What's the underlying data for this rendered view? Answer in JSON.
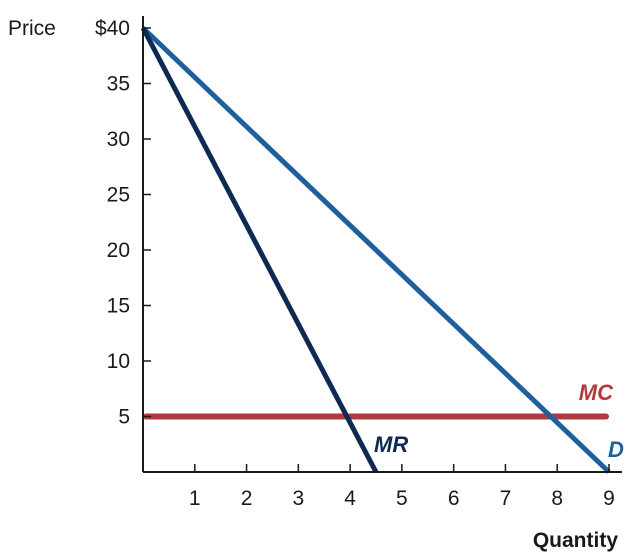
{
  "chart_data": {
    "type": "line",
    "xlabel": "Quantity",
    "ylabel": "Price",
    "xlim": [
      0,
      9
    ],
    "ylim": [
      0,
      40
    ],
    "x_ticks": [
      "1",
      "2",
      "3",
      "4",
      "5",
      "6",
      "7",
      "8",
      "9"
    ],
    "y_ticks": [
      "5",
      "10",
      "15",
      "20",
      "25",
      "30",
      "35",
      "$40"
    ],
    "grid": false,
    "series": [
      {
        "name": "D",
        "x": [
          0,
          9
        ],
        "y": [
          40,
          0
        ],
        "color": "#1f5f9e"
      },
      {
        "name": "MR",
        "x": [
          0,
          4.5
        ],
        "y": [
          40,
          0
        ],
        "color": "#0f2a52"
      },
      {
        "name": "MC",
        "x": [
          0,
          9
        ],
        "y": [
          5,
          5
        ],
        "color": "#b23a3e"
      }
    ]
  }
}
